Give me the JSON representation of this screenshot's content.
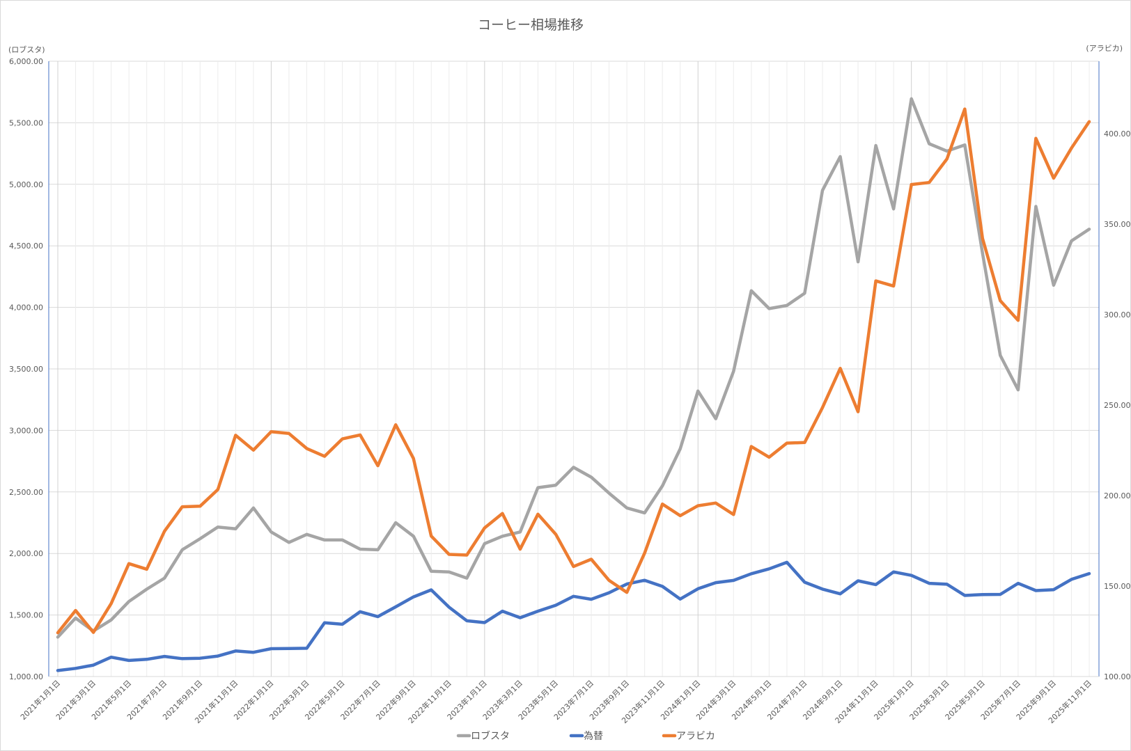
{
  "chart_data": {
    "type": "line",
    "title": "コーヒー相場推移",
    "y_left_label": "(ロブスタ)",
    "y_right_label": "(アラビカ)",
    "y_left_range": [
      1000,
      6000
    ],
    "y_left_ticks": [
      "1,000.00",
      "1,500.00",
      "2,000.00",
      "2,500.00",
      "3,000.00",
      "3,500.00",
      "4,000.00",
      "4,500.00",
      "5,000.00",
      "5,500.00",
      "6,000.00"
    ],
    "y_right_range": [
      100,
      440
    ],
    "y_right_ticks": [
      "100.00",
      "150.00",
      "200.00",
      "250.00",
      "300.00",
      "350.00",
      "400.00"
    ],
    "x_tick_labels": [
      "2021年1月1日",
      "2021年3月1日",
      "2021年5月1日",
      "2021年7月1日",
      "2021年9月1日",
      "2021年11月1日",
      "2022年1月1日",
      "2022年3月1日",
      "2022年5月1日",
      "2022年7月1日",
      "2022年9月1日",
      "2022年11月1日",
      "2023年1月1日",
      "2023年3月1日",
      "2023年5月1日",
      "2023年7月1日",
      "2023年9月1日",
      "2023年11月1日",
      "2024年1月1日",
      "2024年3月1日",
      "2024年5月1日",
      "2024年7月1日",
      "2024年9月1日",
      "2024年11月1日",
      "2025年1月1日",
      "2025年3月1日",
      "2025年5月1日",
      "2025年7月1日",
      "2025年9月1日",
      "2025年11月1日"
    ],
    "point_count": 59,
    "grid": true,
    "legend_position": "bottom",
    "series": [
      {
        "name": "ロブスタ",
        "axis": "left",
        "color": "#a5a5a5",
        "values": [
          1320,
          1475,
          1370,
          1460,
          1610,
          1710,
          1800,
          2030,
          2120,
          2215,
          2200,
          2370,
          2175,
          2090,
          2155,
          2110,
          2110,
          2035,
          2030,
          2250,
          2140,
          1855,
          1850,
          1800,
          2080,
          2140,
          2175,
          2535,
          2555,
          2700,
          2620,
          2490,
          2370,
          2330,
          2550,
          2850,
          3320,
          3095,
          3480,
          4135,
          3990,
          4015,
          4115,
          4950,
          5225,
          4370,
          5315,
          4800,
          5695,
          5330,
          5270,
          5320,
          4440,
          3610,
          3330,
          4820,
          4180,
          4540,
          4635
        ]
      },
      {
        "name": "為替",
        "axis": "right",
        "color": "#4472c4",
        "values": [
          103.3,
          104.5,
          106.3,
          110.7,
          108.9,
          109.5,
          111.1,
          109.9,
          110.1,
          111.3,
          114.1,
          113.4,
          115.4,
          115.5,
          115.6,
          129.7,
          128.9,
          135.8,
          133.1,
          138.5,
          144.0,
          147.9,
          138.3,
          130.8,
          129.8,
          136.1,
          132.5,
          136.1,
          139.4,
          144.3,
          142.7,
          146.3,
          151.1,
          153.2,
          149.8,
          142.8,
          148.5,
          151.9,
          153.1,
          156.8,
          159.5,
          163.1,
          152.1,
          148.3,
          145.7,
          152.9,
          150.8,
          157.8,
          155.9,
          151.5,
          151.0,
          144.8,
          145.3,
          145.4,
          151.5,
          147.5,
          148.0,
          153.7,
          156.9
        ]
      },
      {
        "name": "アラビカ",
        "axis": "right",
        "color": "#ed7d31",
        "values": [
          124.2,
          136.5,
          124.4,
          140.3,
          162.4,
          159.3,
          180.3,
          193.8,
          194.1,
          203.3,
          233.3,
          225.1,
          235.3,
          234.3,
          226.0,
          221.7,
          231.3,
          233.5,
          216.5,
          239.1,
          220.5,
          177.6,
          167.5,
          167.1,
          182.1,
          190.1,
          170.4,
          189.7,
          178.6,
          160.8,
          164.8,
          153.1,
          146.5,
          168.2,
          195.3,
          188.9,
          194.4,
          195.9,
          189.5,
          227.1,
          221.2,
          229.0,
          229.3,
          248.6,
          270.3,
          246.3,
          318.6,
          315.8,
          371.9,
          373.0,
          386.0,
          413.6,
          342.1,
          307.7,
          296.8,
          397.4,
          375.4,
          392.0,
          406.6
        ]
      }
    ]
  }
}
